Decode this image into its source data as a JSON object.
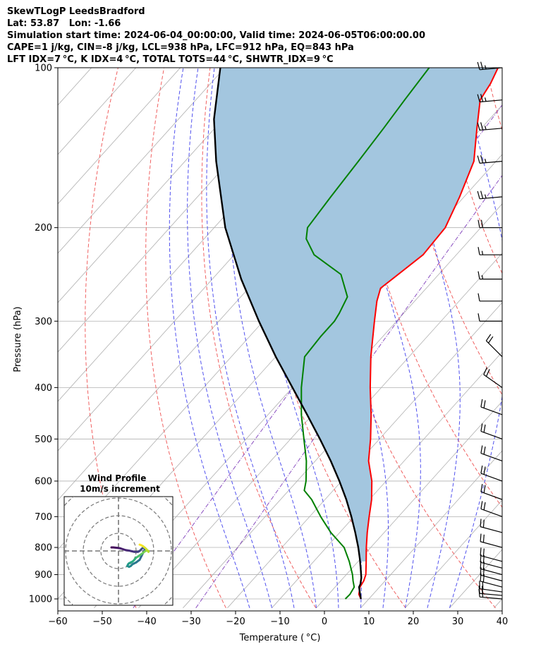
{
  "header": {
    "lines": [
      "SkewTLogP LeedsBradford",
      "Lat: 53.87   Lon: -1.66",
      "Simulation start time: 2024-06-04_00:00:00, Valid time: 2024-06-05T06:00:00.00",
      "CAPE=1 j/kg, CIN=-8 j/kg, LCL=938 hPa, LFC=912 hPa, EQ=843 hPa",
      "LFT IDX=7 °C, K IDX=4 °C, TOTAL TOTS=44 °C, SHWTR_IDX=9 °C"
    ]
  },
  "colors": {
    "temperature": "#ff0000",
    "dewpoint": "#008000",
    "parcel": "#000000",
    "cape_fill": "#a3c6df",
    "isotherm": "#b0b0b0",
    "dry_adiabat": "#f06060",
    "moist_adiabat": "#5050ee",
    "mixing_ratio": "#8a4ec0",
    "grid": "#b0b0b0"
  },
  "chart_data": [
    {
      "type": "line",
      "subtype": "skew-t log-p",
      "xlabel": "Temperature ( °C)",
      "ylabel": "Pressure (hPa)",
      "xlim": [
        -60,
        40
      ],
      "ylim": [
        1040,
        100
      ],
      "y_scale": "log",
      "x_ticks": [
        -60,
        -50,
        -40,
        -30,
        -20,
        -10,
        0,
        10,
        20,
        30,
        40
      ],
      "x_tick_labels": [
        "−60",
        "−50",
        "−40",
        "−30",
        "−20",
        "−10",
        "0",
        "10",
        "20",
        "30",
        "40"
      ],
      "y_ticks": [
        1000,
        900,
        800,
        700,
        600,
        500,
        400,
        300,
        200,
        100
      ],
      "y_tick_labels": [
        "1000",
        "900",
        "800",
        "700",
        "600",
        "500",
        "400",
        "300",
        "200",
        "100"
      ],
      "grid": true,
      "series": [
        {
          "key": "temperature",
          "pressure": [
            1000,
            980,
            950,
            925,
            900,
            850,
            800,
            750,
            700,
            650,
            600,
            550,
            500,
            450,
            400,
            350,
            300,
            275,
            260,
            250,
            225,
            200,
            175,
            150,
            130,
            115,
            107,
            100
          ],
          "values": [
            8.2,
            6.8,
            5.6,
            5.2,
            4.4,
            1.8,
            -1.0,
            -3.8,
            -6.6,
            -9.5,
            -13.2,
            -18.0,
            -22.0,
            -26.8,
            -32.5,
            -38.6,
            -45.0,
            -48.5,
            -50.3,
            -49.5,
            -47.5,
            -48.0,
            -51.0,
            -55.0,
            -61.0,
            -66.0,
            -67.0,
            -68.5
          ]
        },
        {
          "key": "dewpoint",
          "pressure": [
            1000,
            980,
            950,
            925,
            900,
            850,
            800,
            750,
            700,
            650,
            625,
            600,
            550,
            500,
            450,
            400,
            350,
            320,
            300,
            290,
            270,
            245,
            225,
            210,
            200,
            175,
            150,
            130,
            115,
            100
          ],
          "values": [
            4.7,
            4.8,
            4.3,
            2.8,
            1.4,
            -2.0,
            -6.0,
            -12.0,
            -17.5,
            -23.0,
            -26.5,
            -28.0,
            -32.0,
            -37.0,
            -42.5,
            -48.0,
            -53.5,
            -54.0,
            -54.0,
            -54.5,
            -56.0,
            -62.0,
            -72.0,
            -77.0,
            -79.0,
            -80.0,
            -81.0,
            -82.0,
            -83.0,
            -84.0
          ]
        },
        {
          "key": "parcel",
          "pressure": [
            1000,
            975,
            950,
            938,
            912,
            880,
            843,
            800,
            750,
            700,
            650,
            600,
            550,
            500,
            450,
            400,
            350,
            300,
            250,
            200,
            150,
            125,
            100
          ],
          "values": [
            8.2,
            6.8,
            5.4,
            5.1,
            4.0,
            2.2,
            0.0,
            -2.8,
            -6.5,
            -10.6,
            -15.2,
            -20.5,
            -26.5,
            -33.4,
            -41.2,
            -50.0,
            -60.0,
            -71.0,
            -83.5,
            -97.5,
            -113.0,
            -122.0,
            -131.0
          ]
        }
      ],
      "background_lines": {
        "dry_adiabats_theta_K": [
          230,
          250,
          270,
          290,
          310,
          330,
          350,
          370,
          390,
          410,
          430,
          450
        ],
        "moist_adiabats_start_C": [
          -15,
          -10,
          -5,
          0,
          5,
          10,
          15,
          20,
          25,
          30
        ],
        "mixing_ratio_g_per_kg": [
          0.1,
          0.4
        ]
      },
      "wind_barbs": {
        "pressure": [
          1000,
          985,
          970,
          950,
          925,
          900,
          875,
          850,
          800,
          750,
          700,
          650,
          600,
          550,
          500,
          450,
          400,
          350,
          300,
          275,
          250,
          225,
          200,
          175,
          150,
          130,
          115,
          100
        ],
        "speed_kt": [
          20,
          22,
          22,
          20,
          20,
          20,
          20,
          20,
          20,
          20,
          20,
          20,
          20,
          20,
          20,
          20,
          20,
          20,
          10,
          10,
          15,
          15,
          20,
          25,
          25,
          25,
          25,
          25
        ],
        "direction_deg": [
          275,
          275,
          278,
          285,
          285,
          285,
          285,
          285,
          285,
          285,
          290,
          290,
          290,
          290,
          290,
          290,
          305,
          315,
          270,
          270,
          270,
          270,
          270,
          265,
          265,
          265,
          265,
          265
        ]
      }
    },
    {
      "type": "line",
      "subtype": "hodograph",
      "title": "Wind Profile",
      "subtitle": "10m/s increment",
      "ring_increment_ms": 10,
      "u_ms": [
        -4,
        -3,
        -1,
        1,
        4,
        6,
        9,
        11,
        12,
        13,
        14,
        15,
        14,
        13,
        12,
        10,
        8,
        7,
        6,
        5,
        5.5,
        6,
        7,
        8,
        9,
        10,
        11,
        12,
        13,
        14,
        15,
        16,
        17,
        17,
        16,
        15,
        14,
        13,
        12
      ],
      "v_ms": [
        2,
        2,
        1.8,
        1.5,
        0.5,
        0.2,
        -0.5,
        -0.5,
        0.0,
        1.0,
        2.0,
        1.0,
        -1.0,
        -3.0,
        -5.0,
        -6.5,
        -7.5,
        -8.5,
        -9.0,
        -8.5,
        -7.5,
        -7.0,
        -6.5,
        -6.0,
        -5.0,
        -3.8,
        -3.2,
        -2.5,
        -1.8,
        -1.0,
        -0.2,
        0.2,
        0.0,
        -0.5,
        0.8,
        1.8,
        2.6,
        3.2,
        3.6
      ]
    }
  ]
}
